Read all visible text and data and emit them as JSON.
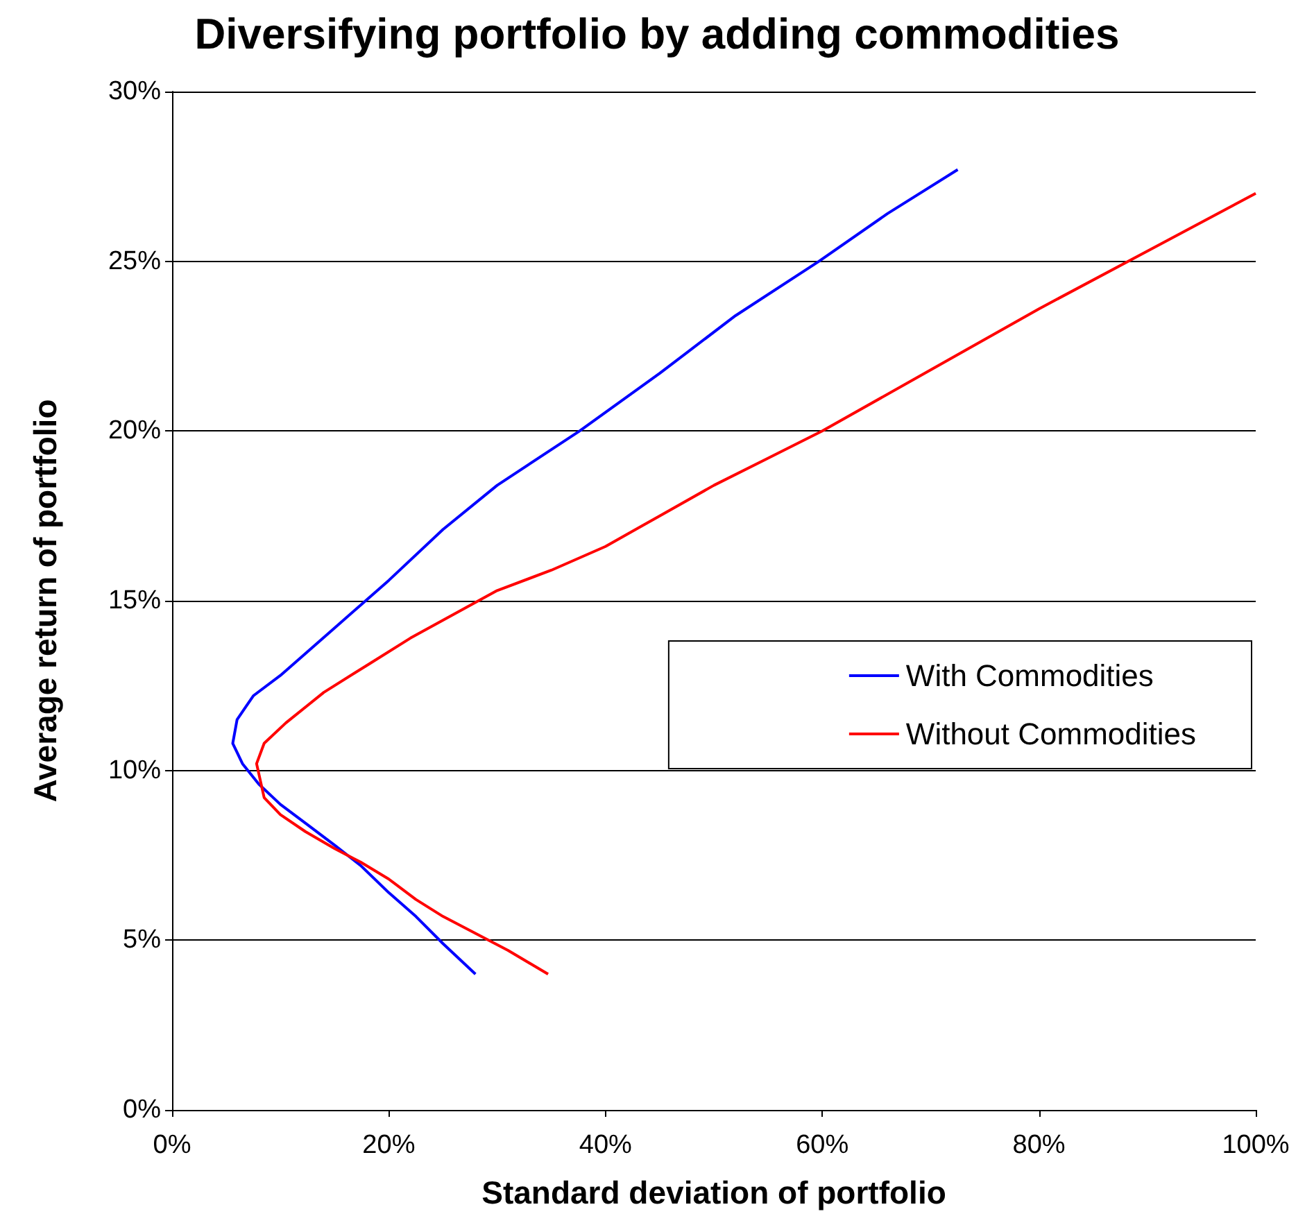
{
  "chart_data": {
    "type": "line",
    "title": "Diversifying portfolio by adding commodities",
    "xlabel": "Standard deviation of portfolio",
    "ylabel": "Average return of portfolio",
    "xlim": [
      0,
      100
    ],
    "xticks": [
      {
        "value": 0,
        "label": "0%"
      },
      {
        "value": 20,
        "label": "20%"
      },
      {
        "value": 40,
        "label": "40%"
      },
      {
        "value": 60,
        "label": "60%"
      },
      {
        "value": 80,
        "label": "80%"
      },
      {
        "value": 100,
        "label": "100%"
      }
    ],
    "ylim": [
      0,
      30
    ],
    "yticks": [
      {
        "value": 0,
        "label": "0%"
      },
      {
        "value": 5,
        "label": "5%"
      },
      {
        "value": 10,
        "label": "10%"
      },
      {
        "value": 15,
        "label": "15%"
      },
      {
        "value": 20,
        "label": "20%"
      },
      {
        "value": 25,
        "label": "25%"
      },
      {
        "value": 30,
        "label": "30%"
      }
    ],
    "grid": "y",
    "legend": "right",
    "marker": "none",
    "line_style": "solid",
    "series": [
      {
        "name": "With Commodities",
        "color": "#0000ff",
        "x": [
          28,
          25,
          22.5,
          20,
          17.4,
          15,
          12.5,
          10,
          8,
          6.5,
          5.6,
          6,
          7.5,
          10,
          12.5,
          15,
          17.5,
          20,
          25,
          30,
          37.6,
          45,
          52,
          59.7,
          66,
          72.5
        ],
        "values": [
          4,
          4.9,
          5.7,
          6.4,
          7.2,
          7.8,
          8.4,
          9,
          9.6,
          10.2,
          10.8,
          11.5,
          12.2,
          12.8,
          13.5,
          14.2,
          14.9,
          15.6,
          17.1,
          18.4,
          20,
          21.7,
          23.4,
          25,
          26.4,
          27.7
        ]
      },
      {
        "name": "Without Commodities",
        "color": "#ff0000",
        "x": [
          34.7,
          31,
          28,
          25,
          22.5,
          20,
          17.4,
          15,
          12.3,
          10,
          8.5,
          7.8,
          8.5,
          10.5,
          14,
          18,
          22,
          26,
          30,
          35,
          40,
          45,
          50,
          55,
          60,
          70,
          80,
          90,
          100
        ],
        "values": [
          4,
          4.7,
          5.2,
          5.7,
          6.2,
          6.8,
          7.3,
          7.7,
          8.2,
          8.7,
          9.2,
          10.2,
          10.8,
          11.4,
          12.3,
          13.1,
          13.9,
          14.6,
          15.3,
          15.9,
          16.6,
          17.5,
          18.4,
          19.2,
          20,
          21.8,
          23.6,
          25.3,
          27
        ]
      }
    ]
  }
}
